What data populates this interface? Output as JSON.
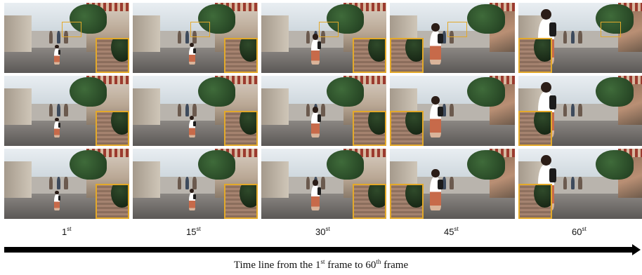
{
  "frames": [
    {
      "label_num": "1",
      "label_sup": "st",
      "scene": "far"
    },
    {
      "label_num": "15",
      "label_sup": "st",
      "scene": "far"
    },
    {
      "label_num": "30",
      "label_sup": "st",
      "scene": "mid"
    },
    {
      "label_num": "45",
      "label_sup": "st",
      "scene": "near"
    },
    {
      "label_num": "60",
      "label_sup": "st",
      "scene": "close"
    }
  ],
  "rows": 3,
  "caption": {
    "p1": "Time line from the 1",
    "s1": "st",
    "p2": " frame to 60",
    "s2": "th",
    "p3": " frame"
  },
  "colors": {
    "highlight_box": "#e3a92a",
    "arrow": "#000000"
  }
}
